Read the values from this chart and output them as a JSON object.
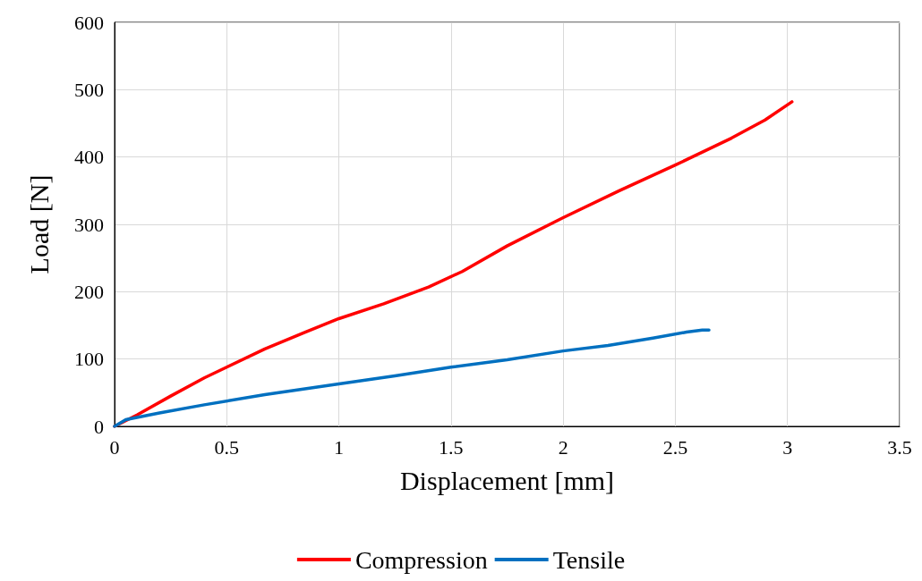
{
  "chart_data": {
    "type": "line",
    "xlabel": "Displacement [mm]",
    "ylabel": "Load [N]",
    "xlim": [
      0,
      3.5
    ],
    "xticks": [
      0,
      0.5,
      1,
      1.5,
      2,
      2.5,
      3,
      3.5
    ],
    "ylim": [
      0,
      600
    ],
    "yticks": [
      0,
      100,
      200,
      300,
      400,
      500,
      600
    ],
    "grid": true,
    "legend": "bottom",
    "marker": "none",
    "line_style": "solid",
    "series": [
      {
        "name": "Compression",
        "color": "#ff0000",
        "x": [
          0,
          0.1,
          0.25,
          0.4,
          0.5,
          0.67,
          0.85,
          1,
          1.2,
          1.4,
          1.55,
          1.75,
          2,
          2.25,
          2.5,
          2.75,
          2.9,
          3.02
        ],
        "values": [
          0,
          17,
          45,
          72,
          88,
          115,
          140,
          160,
          182,
          207,
          230,
          268,
          310,
          350,
          388,
          428,
          455,
          482
        ]
      },
      {
        "name": "Tensile",
        "color": "#0070c0",
        "x": [
          0,
          0.05,
          0.2,
          0.4,
          0.67,
          1,
          1.25,
          1.5,
          1.75,
          2,
          2.2,
          2.4,
          2.55,
          2.62,
          2.65
        ],
        "values": [
          0,
          10,
          20,
          32,
          47,
          63,
          75,
          88,
          99,
          112,
          120,
          131,
          140,
          143,
          143
        ]
      }
    ]
  }
}
